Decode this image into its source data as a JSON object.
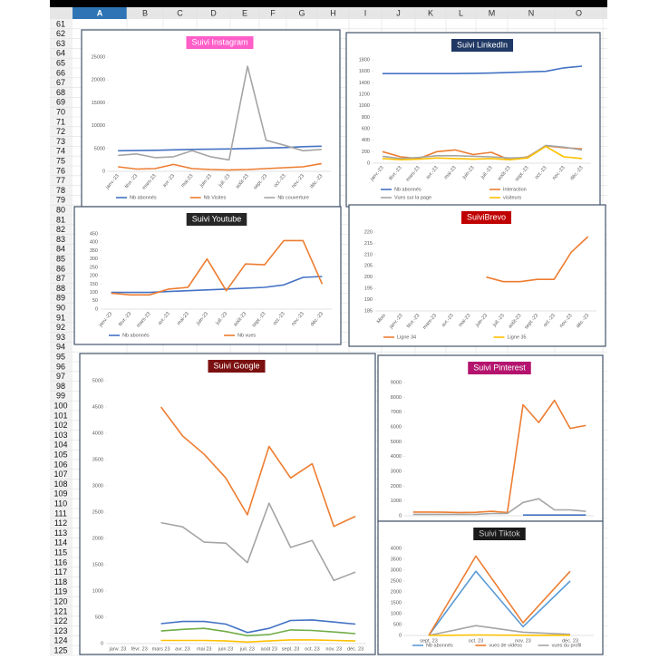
{
  "sheet": {
    "columns": [
      "A",
      "B",
      "C",
      "D",
      "E",
      "F",
      "G",
      "H",
      "I",
      "J",
      "K",
      "L",
      "M",
      "N",
      "O"
    ],
    "rows": [
      61,
      62,
      63,
      64,
      65,
      66,
      67,
      68,
      69,
      70,
      71,
      72,
      73,
      74,
      75,
      76,
      77,
      78,
      79,
      80,
      81,
      82,
      83,
      84,
      85,
      86,
      87,
      88,
      89,
      90,
      91,
      92,
      93,
      94,
      95,
      96,
      97,
      98,
      99,
      100,
      101,
      102,
      103,
      104,
      105,
      106,
      107,
      108,
      109,
      110,
      111,
      112,
      113,
      114,
      115,
      116,
      117,
      118,
      119,
      120,
      121,
      122,
      123,
      124,
      125
    ]
  },
  "chart_data": [
    {
      "type": "line",
      "title": "Suivi Instagram",
      "title_color": "#ff5ec9",
      "categories": [
        "janv.-23",
        "févr.-23",
        "mars-23",
        "avr.-23",
        "mai-23",
        "juin-23",
        "juil.-23",
        "août-23",
        "sept.-23",
        "oct.-23",
        "nov.-23",
        "déc.-23"
      ],
      "series": [
        {
          "name": "Nb abonnés",
          "color": "#4472c4",
          "values": [
            4500,
            4550,
            4600,
            4700,
            4800,
            4850,
            4900,
            5000,
            5100,
            5200,
            5400,
            5500
          ]
        },
        {
          "name": "Nb Visites",
          "color": "#ed7d31",
          "values": [
            1000,
            500,
            600,
            1500,
            600,
            400,
            300,
            400,
            600,
            800,
            1000,
            1700
          ]
        },
        {
          "name": "Nb couverture",
          "color": "#a5a5a5",
          "values": [
            3500,
            3800,
            3000,
            3200,
            4500,
            3200,
            2500,
            23000,
            6800,
            5700,
            4500,
            4800
          ]
        }
      ],
      "ylim": [
        0,
        25000
      ],
      "yticks": [
        0,
        5000,
        10000,
        15000,
        20000,
        25000
      ]
    },
    {
      "type": "line",
      "title": "Suivi LinkedIn",
      "title_color": "#1f3864",
      "categories": [
        "janv.-23",
        "févr.-23",
        "mars-23",
        "avr.-23",
        "mai-23",
        "juin-23",
        "juil.-23",
        "août-23",
        "sept.-23",
        "oct.-23",
        "nov.-23",
        "déc.-23"
      ],
      "series": [
        {
          "name": "Nb abonnés",
          "color": "#4472c4",
          "values": [
            1560,
            1560,
            1560,
            1560,
            1560,
            1565,
            1570,
            1580,
            1590,
            1600,
            1660,
            1690
          ]
        },
        {
          "name": "Interaction",
          "color": "#ed7d31",
          "values": [
            200,
            110,
            80,
            200,
            230,
            150,
            190,
            60,
            110,
            300,
            270,
            250
          ]
        },
        {
          "name": "Vues sur la page",
          "color": "#a5a5a5",
          "values": [
            120,
            80,
            100,
            130,
            130,
            120,
            110,
            90,
            100,
            310,
            280,
            230
          ]
        },
        {
          "name": "visiteurs",
          "color": "#ffc000",
          "values": [
            80,
            60,
            70,
            90,
            80,
            70,
            80,
            60,
            90,
            290,
            110,
            80
          ]
        }
      ],
      "ylim": [
        0,
        1800
      ],
      "yticks": [
        0,
        200,
        400,
        600,
        800,
        1000,
        1200,
        1400,
        1600,
        1800
      ]
    },
    {
      "type": "line",
      "title": "Suivi Youtube",
      "title_color": "#262626",
      "categories": [
        "janv.-23",
        "févr.-23",
        "mars-23",
        "avr.-23",
        "mai-23",
        "juin-23",
        "juil.-23",
        "août-23",
        "sept.-23",
        "oct.-23",
        "nov.-23",
        "déc.-23"
      ],
      "series": [
        {
          "name": "Nb abonnés",
          "color": "#4472c4",
          "values": [
            100,
            100,
            100,
            105,
            110,
            115,
            120,
            125,
            130,
            145,
            190,
            195
          ]
        },
        {
          "name": "Nb vues",
          "color": "#ed7d31",
          "values": [
            95,
            85,
            85,
            120,
            130,
            300,
            110,
            270,
            265,
            410,
            410,
            150
          ]
        }
      ],
      "ylim": [
        0,
        450
      ],
      "yticks": [
        0,
        50,
        100,
        150,
        200,
        250,
        300,
        350,
        400,
        450
      ]
    },
    {
      "type": "line",
      "title": "SuiviBrevo",
      "title_color": "#c00000",
      "categories": [
        "Mois",
        "janv.-23",
        "févr.-23",
        "mars-23",
        "avr.-23",
        "mai-23",
        "juin-23",
        "juil.-23",
        "août-23",
        "sept.-23",
        "oct.-23",
        "nov.-23",
        "déc.-23"
      ],
      "series": [
        {
          "name": "Ligne 34",
          "color": "#ed7d31",
          "values": [
            null,
            null,
            null,
            null,
            null,
            null,
            200,
            198,
            198,
            199,
            199,
            211,
            218
          ]
        },
        {
          "name": "Ligne 35",
          "color": "#ffc000",
          "values": [
            null,
            null,
            null,
            null,
            null,
            null,
            null,
            null,
            null,
            null,
            null,
            null,
            null
          ]
        }
      ],
      "ylim": [
        185,
        220
      ],
      "yticks": [
        185,
        190,
        195,
        200,
        205,
        210,
        215,
        220
      ]
    },
    {
      "type": "line",
      "title": "Suivi Google",
      "title_color": "#7b1010",
      "categories": [
        "janv. 23",
        "févr. 23",
        "mars 23",
        "avr. 23",
        "mai 23",
        "juin 23",
        "juil. 23",
        "août 23",
        "sept. 23",
        "oct. 23",
        "nov. 23",
        "déc. 23"
      ],
      "series": [
        {
          "color": "#ed7d31",
          "values": [
            null,
            null,
            4500,
            3950,
            3600,
            3150,
            2450,
            3750,
            3150,
            3420,
            2230,
            2420
          ]
        },
        {
          "color": "#a5a5a5",
          "values": [
            null,
            null,
            2300,
            2220,
            1930,
            1910,
            1540,
            2670,
            1830,
            1960,
            1200,
            1360
          ]
        },
        {
          "color": "#4472c4",
          "values": [
            null,
            null,
            380,
            420,
            420,
            370,
            210,
            290,
            440,
            450,
            410,
            370
          ]
        },
        {
          "color": "#70ad47",
          "values": [
            null,
            null,
            240,
            270,
            290,
            230,
            150,
            170,
            260,
            250,
            220,
            190
          ]
        },
        {
          "color": "#ffc000",
          "values": [
            null,
            null,
            60,
            60,
            60,
            50,
            30,
            50,
            70,
            70,
            60,
            50
          ]
        }
      ],
      "ylim": [
        0,
        5000
      ],
      "yticks": [
        0,
        500,
        1000,
        1500,
        2000,
        2500,
        3000,
        3500,
        4000,
        4500,
        5000
      ]
    },
    {
      "type": "line",
      "title": "Suivi Pinterest",
      "title_color": "#b4136e",
      "categories": [
        null,
        null,
        null,
        null,
        null,
        null,
        null,
        null,
        null,
        null,
        null,
        null
      ],
      "series": [
        {
          "color": "#ed7d31",
          "values": [
            250,
            250,
            240,
            220,
            230,
            300,
            220,
            7500,
            6300,
            7800,
            5900,
            6100
          ]
        },
        {
          "color": "#a5a5a5",
          "values": [
            100,
            100,
            100,
            100,
            100,
            150,
            150,
            900,
            1150,
            400,
            400,
            300
          ]
        },
        {
          "color": "#4472c4",
          "values": [
            null,
            null,
            null,
            null,
            null,
            null,
            null,
            50,
            50,
            50,
            50,
            50
          ]
        }
      ],
      "ylim": [
        0,
        9000
      ],
      "yticks": [
        0,
        1000,
        2000,
        3000,
        4000,
        5000,
        6000,
        7000,
        8000,
        9000
      ]
    },
    {
      "type": "line",
      "title": "Suivi Tiktok",
      "title_color": "#1a1a1a",
      "categories": [
        "sept. 23",
        "oct. 23",
        "nov. 23",
        "déc. 23"
      ],
      "series": [
        {
          "name": "Nb abonnés",
          "color": "#5b9bd5",
          "values": [
            0,
            2950,
            400,
            2500
          ]
        },
        {
          "name": "vues de vidéos",
          "color": "#ed7d31",
          "values": [
            0,
            3650,
            580,
            2950
          ]
        },
        {
          "name": "vues du profil",
          "color": "#a5a5a5",
          "values": [
            0,
            450,
            150,
            50
          ]
        },
        {
          "color": "#ffc000",
          "values": [
            0,
            20,
            10,
            10
          ]
        }
      ],
      "ylim": [
        0,
        4000
      ],
      "yticks": [
        0,
        500,
        1000,
        1500,
        2000,
        2500,
        3000,
        3500,
        4000
      ]
    }
  ]
}
